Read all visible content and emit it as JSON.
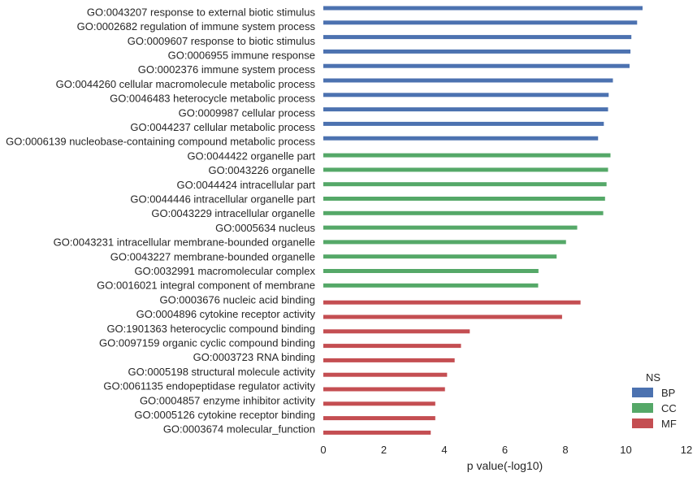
{
  "chart_data": {
    "type": "bar",
    "orientation": "horizontal",
    "xlabel": "p value(-log10)",
    "xlim": [
      0,
      12
    ],
    "xticks": [
      "0",
      "2",
      "4",
      "6",
      "8",
      "10",
      "12"
    ],
    "legend": {
      "title": "NS",
      "placement": "bottom-right",
      "entries": [
        {
          "name": "BP",
          "color": "#4c72b0"
        },
        {
          "name": "CC",
          "color": "#55a868"
        },
        {
          "name": "MF",
          "color": "#c44e52"
        }
      ]
    },
    "series": [
      {
        "name": "BP",
        "color": "#4c72b0",
        "categories": [
          "GO:0043207 response to external biotic stimulus",
          "GO:0002682 regulation of immune system process",
          "GO:0009607 response to biotic stimulus",
          "GO:0006955 immune response",
          "GO:0002376 immune system process",
          "GO:0044260 cellular macromolecule metabolic process",
          "GO:0046483 heterocycle metabolic process",
          "GO:0009987 cellular process",
          "GO:0044237 cellular metabolic process",
          "GO:0006139 nucleobase-containing compound metabolic process"
        ],
        "values": [
          10.55,
          10.37,
          10.18,
          10.15,
          10.12,
          9.57,
          9.43,
          9.41,
          9.27,
          9.08
        ]
      },
      {
        "name": "CC",
        "color": "#55a868",
        "categories": [
          "GO:0044422 organelle part",
          "GO:0043226 organelle",
          "GO:0044424 intracellular part",
          "GO:0044446 intracellular organelle part",
          "GO:0043229 intracellular organelle",
          "GO:0005634 nucleus",
          "GO:0043231 intracellular membrane-bounded organelle",
          "GO:0043227 membrane-bounded organelle",
          "GO:0032991 macromolecular complex",
          "GO:0016021 integral component of membrane"
        ],
        "values": [
          9.49,
          9.41,
          9.36,
          9.31,
          9.25,
          8.39,
          8.02,
          7.71,
          7.11,
          7.1
        ]
      },
      {
        "name": "MF",
        "color": "#c44e52",
        "categories": [
          "GO:0003676 nucleic acid binding",
          "GO:0004896 cytokine receptor activity",
          "GO:1901363 heterocyclic compound binding",
          "GO:0097159 organic cyclic compound binding",
          "GO:0003723 RNA binding",
          "GO:0005198 structural molecule activity",
          "GO:0061135 endopeptidase regulator activity",
          "GO:0004857 enzyme inhibitor activity",
          "GO:0005126 cytokine receptor binding",
          "GO:0003674 molecular_function"
        ],
        "values": [
          8.5,
          7.89,
          4.84,
          4.55,
          4.34,
          4.09,
          4.02,
          3.7,
          3.7,
          3.55
        ]
      }
    ]
  }
}
